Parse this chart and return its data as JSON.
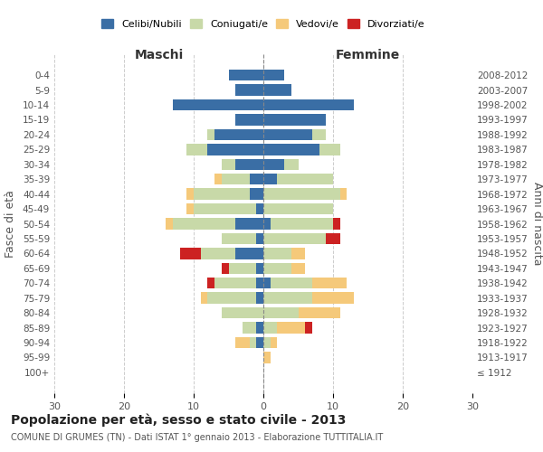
{
  "age_groups": [
    "100+",
    "95-99",
    "90-94",
    "85-89",
    "80-84",
    "75-79",
    "70-74",
    "65-69",
    "60-64",
    "55-59",
    "50-54",
    "45-49",
    "40-44",
    "35-39",
    "30-34",
    "25-29",
    "20-24",
    "15-19",
    "10-14",
    "5-9",
    "0-4"
  ],
  "birth_years": [
    "≤ 1912",
    "1913-1917",
    "1918-1922",
    "1923-1927",
    "1928-1932",
    "1933-1937",
    "1938-1942",
    "1943-1947",
    "1948-1952",
    "1953-1957",
    "1958-1962",
    "1963-1967",
    "1968-1972",
    "1973-1977",
    "1978-1982",
    "1983-1987",
    "1988-1992",
    "1993-1997",
    "1998-2002",
    "2003-2007",
    "2008-2012"
  ],
  "male": {
    "celibi": [
      0,
      0,
      1,
      1,
      0,
      1,
      1,
      1,
      4,
      1,
      4,
      1,
      2,
      2,
      4,
      8,
      7,
      4,
      13,
      4,
      5
    ],
    "coniugati": [
      0,
      0,
      1,
      2,
      6,
      7,
      6,
      4,
      5,
      5,
      9,
      9,
      8,
      4,
      2,
      3,
      1,
      0,
      0,
      0,
      0
    ],
    "vedovi": [
      0,
      0,
      2,
      0,
      0,
      1,
      0,
      0,
      0,
      0,
      1,
      1,
      1,
      1,
      0,
      0,
      0,
      0,
      0,
      0,
      0
    ],
    "divorziati": [
      0,
      0,
      0,
      0,
      0,
      0,
      1,
      1,
      3,
      0,
      0,
      0,
      0,
      0,
      0,
      0,
      0,
      0,
      0,
      0,
      0
    ]
  },
  "female": {
    "nubili": [
      0,
      0,
      0,
      0,
      0,
      0,
      1,
      0,
      0,
      0,
      1,
      0,
      0,
      2,
      3,
      8,
      7,
      9,
      13,
      4,
      3
    ],
    "coniugate": [
      0,
      0,
      1,
      2,
      5,
      7,
      6,
      4,
      4,
      9,
      9,
      10,
      11,
      8,
      2,
      3,
      2,
      0,
      0,
      0,
      0
    ],
    "vedove": [
      0,
      1,
      1,
      4,
      6,
      6,
      5,
      2,
      2,
      0,
      0,
      0,
      1,
      0,
      0,
      0,
      0,
      0,
      0,
      0,
      0
    ],
    "divorziate": [
      0,
      0,
      0,
      1,
      0,
      0,
      0,
      0,
      0,
      2,
      1,
      0,
      0,
      0,
      0,
      0,
      0,
      0,
      0,
      0,
      0
    ]
  },
  "colors": {
    "celibi_nubili": "#3A6EA5",
    "coniugati": "#C8D9A8",
    "vedovi": "#F5C97A",
    "divorziati": "#CC2222"
  },
  "xlim": 30,
  "title": "Popolazione per età, sesso e stato civile - 2013",
  "subtitle": "COMUNE DI GRUMES (TN) - Dati ISTAT 1° gennaio 2013 - Elaborazione TUTTITALIA.IT",
  "ylabel_left": "Fasce di età",
  "ylabel_right": "Anni di nascita",
  "xlabel_maschi": "Maschi",
  "xlabel_femmine": "Femmine",
  "bg_color": "#ffffff",
  "grid_color": "#cccccc"
}
